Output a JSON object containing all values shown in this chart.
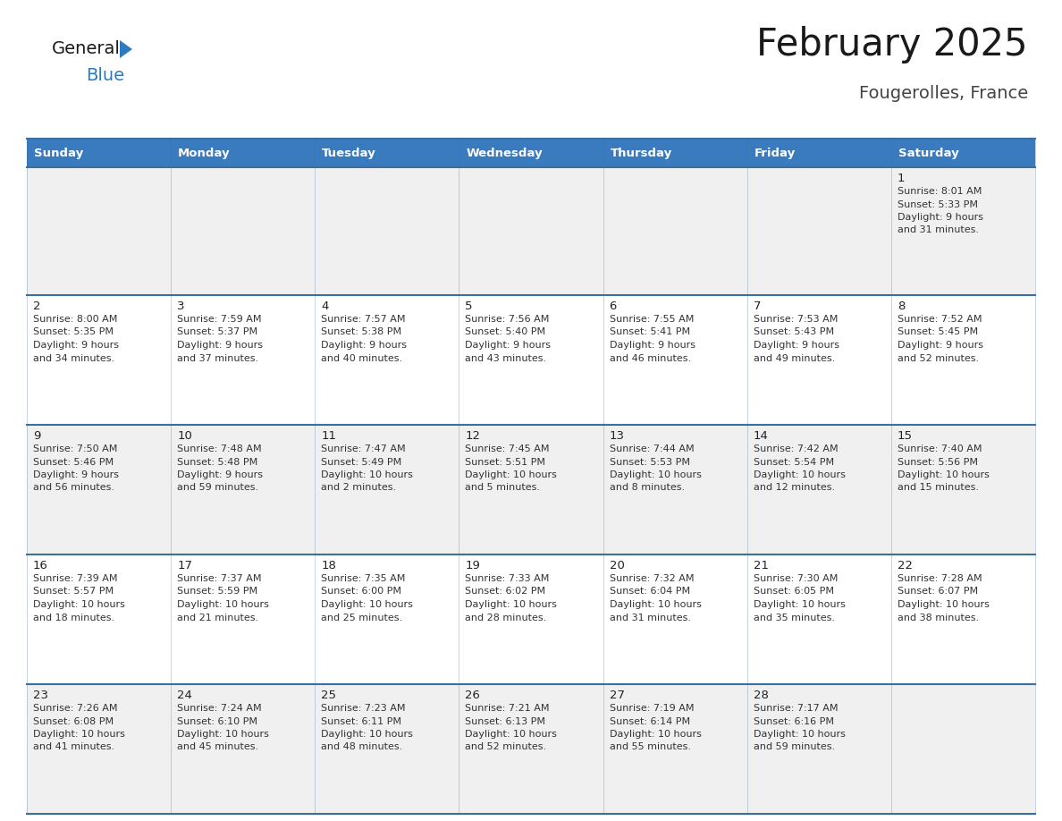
{
  "title": "February 2025",
  "subtitle": "Fougerolles, France",
  "days_of_week": [
    "Sunday",
    "Monday",
    "Tuesday",
    "Wednesday",
    "Thursday",
    "Friday",
    "Saturday"
  ],
  "header_bg": "#3a7abf",
  "header_text_color": "#ffffff",
  "cell_bg_row0": "#f0f0f0",
  "cell_bg_odd": "#f0f0f0",
  "cell_bg_even": "#ffffff",
  "cell_border_color": "#3a6fa0",
  "day_number_color": "#222222",
  "day_text_color": "#333333",
  "title_color": "#1a1a1a",
  "subtitle_color": "#444444",
  "logo_general_color": "#1a1a1a",
  "logo_blue_color": "#2e7abf",
  "calendar_data": [
    {
      "day": 1,
      "col": 6,
      "row": 0,
      "sunrise": "8:01 AM",
      "sunset": "5:33 PM",
      "daylight_hours": 9,
      "daylight_minutes": 31
    },
    {
      "day": 2,
      "col": 0,
      "row": 1,
      "sunrise": "8:00 AM",
      "sunset": "5:35 PM",
      "daylight_hours": 9,
      "daylight_minutes": 34
    },
    {
      "day": 3,
      "col": 1,
      "row": 1,
      "sunrise": "7:59 AM",
      "sunset": "5:37 PM",
      "daylight_hours": 9,
      "daylight_minutes": 37
    },
    {
      "day": 4,
      "col": 2,
      "row": 1,
      "sunrise": "7:57 AM",
      "sunset": "5:38 PM",
      "daylight_hours": 9,
      "daylight_minutes": 40
    },
    {
      "day": 5,
      "col": 3,
      "row": 1,
      "sunrise": "7:56 AM",
      "sunset": "5:40 PM",
      "daylight_hours": 9,
      "daylight_minutes": 43
    },
    {
      "day": 6,
      "col": 4,
      "row": 1,
      "sunrise": "7:55 AM",
      "sunset": "5:41 PM",
      "daylight_hours": 9,
      "daylight_minutes": 46
    },
    {
      "day": 7,
      "col": 5,
      "row": 1,
      "sunrise": "7:53 AM",
      "sunset": "5:43 PM",
      "daylight_hours": 9,
      "daylight_minutes": 49
    },
    {
      "day": 8,
      "col": 6,
      "row": 1,
      "sunrise": "7:52 AM",
      "sunset": "5:45 PM",
      "daylight_hours": 9,
      "daylight_minutes": 52
    },
    {
      "day": 9,
      "col": 0,
      "row": 2,
      "sunrise": "7:50 AM",
      "sunset": "5:46 PM",
      "daylight_hours": 9,
      "daylight_minutes": 56
    },
    {
      "day": 10,
      "col": 1,
      "row": 2,
      "sunrise": "7:48 AM",
      "sunset": "5:48 PM",
      "daylight_hours": 9,
      "daylight_minutes": 59
    },
    {
      "day": 11,
      "col": 2,
      "row": 2,
      "sunrise": "7:47 AM",
      "sunset": "5:49 PM",
      "daylight_hours": 10,
      "daylight_minutes": 2
    },
    {
      "day": 12,
      "col": 3,
      "row": 2,
      "sunrise": "7:45 AM",
      "sunset": "5:51 PM",
      "daylight_hours": 10,
      "daylight_minutes": 5
    },
    {
      "day": 13,
      "col": 4,
      "row": 2,
      "sunrise": "7:44 AM",
      "sunset": "5:53 PM",
      "daylight_hours": 10,
      "daylight_minutes": 8
    },
    {
      "day": 14,
      "col": 5,
      "row": 2,
      "sunrise": "7:42 AM",
      "sunset": "5:54 PM",
      "daylight_hours": 10,
      "daylight_minutes": 12
    },
    {
      "day": 15,
      "col": 6,
      "row": 2,
      "sunrise": "7:40 AM",
      "sunset": "5:56 PM",
      "daylight_hours": 10,
      "daylight_minutes": 15
    },
    {
      "day": 16,
      "col": 0,
      "row": 3,
      "sunrise": "7:39 AM",
      "sunset": "5:57 PM",
      "daylight_hours": 10,
      "daylight_minutes": 18
    },
    {
      "day": 17,
      "col": 1,
      "row": 3,
      "sunrise": "7:37 AM",
      "sunset": "5:59 PM",
      "daylight_hours": 10,
      "daylight_minutes": 21
    },
    {
      "day": 18,
      "col": 2,
      "row": 3,
      "sunrise": "7:35 AM",
      "sunset": "6:00 PM",
      "daylight_hours": 10,
      "daylight_minutes": 25
    },
    {
      "day": 19,
      "col": 3,
      "row": 3,
      "sunrise": "7:33 AM",
      "sunset": "6:02 PM",
      "daylight_hours": 10,
      "daylight_minutes": 28
    },
    {
      "day": 20,
      "col": 4,
      "row": 3,
      "sunrise": "7:32 AM",
      "sunset": "6:04 PM",
      "daylight_hours": 10,
      "daylight_minutes": 31
    },
    {
      "day": 21,
      "col": 5,
      "row": 3,
      "sunrise": "7:30 AM",
      "sunset": "6:05 PM",
      "daylight_hours": 10,
      "daylight_minutes": 35
    },
    {
      "day": 22,
      "col": 6,
      "row": 3,
      "sunrise": "7:28 AM",
      "sunset": "6:07 PM",
      "daylight_hours": 10,
      "daylight_minutes": 38
    },
    {
      "day": 23,
      "col": 0,
      "row": 4,
      "sunrise": "7:26 AM",
      "sunset": "6:08 PM",
      "daylight_hours": 10,
      "daylight_minutes": 41
    },
    {
      "day": 24,
      "col": 1,
      "row": 4,
      "sunrise": "7:24 AM",
      "sunset": "6:10 PM",
      "daylight_hours": 10,
      "daylight_minutes": 45
    },
    {
      "day": 25,
      "col": 2,
      "row": 4,
      "sunrise": "7:23 AM",
      "sunset": "6:11 PM",
      "daylight_hours": 10,
      "daylight_minutes": 48
    },
    {
      "day": 26,
      "col": 3,
      "row": 4,
      "sunrise": "7:21 AM",
      "sunset": "6:13 PM",
      "daylight_hours": 10,
      "daylight_minutes": 52
    },
    {
      "day": 27,
      "col": 4,
      "row": 4,
      "sunrise": "7:19 AM",
      "sunset": "6:14 PM",
      "daylight_hours": 10,
      "daylight_minutes": 55
    },
    {
      "day": 28,
      "col": 5,
      "row": 4,
      "sunrise": "7:17 AM",
      "sunset": "6:16 PM",
      "daylight_hours": 10,
      "daylight_minutes": 59
    }
  ]
}
